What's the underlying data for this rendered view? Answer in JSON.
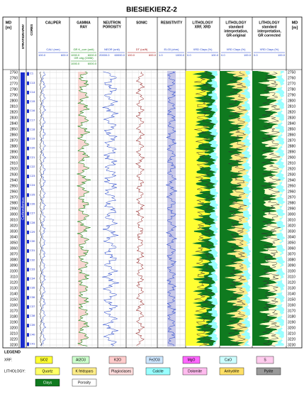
{
  "title": "BIESIEKIERZ-2",
  "md_header": [
    "MD",
    "[m]"
  ],
  "strat_header": "STRATIGRAPHY",
  "cores_header": "CORES",
  "stratigraphy": "Carboniferous",
  "cores": [
    "C1",
    "C13",
    "C14",
    "C15",
    "C16",
    "C17",
    "C18",
    "C19",
    "C20",
    "C21",
    "C22",
    "C23",
    "C24",
    "C25",
    "C26",
    "C27",
    "C28",
    "C29",
    "C30",
    "C31",
    "C32",
    "C33",
    "C34",
    "C35",
    "C36",
    "C37",
    "C38",
    "C39",
    "C40",
    "C41"
  ],
  "tracks": [
    {
      "title": [
        "CALIPER"
      ],
      "scales": [
        {
          "label": "CALI (mm)",
          "min": "100.0",
          "max": "600.0",
          "color": "#1a3cc8"
        }
      ]
    },
    {
      "title": [
        "GAMMA",
        "RAY"
      ],
      "scales": [
        {
          "label": "GR K_corr (unit)",
          "min": "1000.0",
          "max": "6000.0",
          "color": "#1a8a1a"
        },
        {
          "label": "GR orig (CMM)",
          "min": "1000.0",
          "max": "6000.0",
          "color": "#1a8a1a"
        }
      ]
    },
    {
      "title": [
        "NEUTRON",
        "POROSITY"
      ],
      "scales": [
        {
          "label": "NEOR (unit)",
          "min": "20000.0",
          "max": "60000.0",
          "color": "#1a3cc8"
        }
      ]
    },
    {
      "title": [
        "SONIC"
      ],
      "scales": [
        {
          "label": "DT (us/ft)",
          "min": "100.0",
          "max": "600.0",
          "color": "#a01010"
        }
      ]
    },
    {
      "title": [
        "RESISTIVITY"
      ],
      "scales": [
        {
          "label": "EL03 (ohm)",
          "min": "1.0",
          "max": "1000.0",
          "color": "#1a3cc8"
        }
      ]
    },
    {
      "title": [
        "LITHOLOGY",
        "XRF, XRD"
      ],
      "scales": [
        {
          "label": "XRD Clays (%)",
          "min": "0.0",
          "max": "100.0",
          "color": "#1a3cc8"
        }
      ]
    },
    {
      "title": [
        "LITHOLOGY",
        "standard",
        "interpretation,",
        "GR-original"
      ],
      "scales": [
        {
          "label": "XRD Clays (%)",
          "min": "0.0",
          "max": "100.0",
          "color": "#1a3cc8"
        }
      ]
    },
    {
      "title": [
        "LITHOLOGY",
        "standard",
        "interpretation,",
        "GR corrected"
      ],
      "scales": [
        {
          "label": "XRD Clays (%)",
          "min": "0.0",
          "max": "100.0",
          "color": "#1a3cc8"
        }
      ]
    }
  ],
  "depth": {
    "range": [
      2745,
      3235
    ],
    "ticks": [
      2750,
      2760,
      2770,
      2780,
      2790,
      2800,
      2810,
      2820,
      2830,
      2840,
      2850,
      2860,
      2870,
      2880,
      2890,
      2900,
      2910,
      2920,
      2930,
      2940,
      2950,
      2960,
      2970,
      2980,
      2990,
      3000,
      3010,
      3020,
      3030,
      3040,
      3050,
      3060,
      3070,
      3080,
      3090,
      3100,
      3110,
      3120,
      3130,
      3140,
      3150,
      3160,
      3170,
      3180,
      3190,
      3200,
      3210,
      3220,
      3230
    ]
  },
  "legend": {
    "title": "LEGEND",
    "xrf_label": "XRF:",
    "xrf": [
      {
        "name": "SiO2",
        "color": "#ffff33"
      },
      {
        "name": "Al2O3",
        "color": "#ccffcc"
      },
      {
        "name": "K2O",
        "color": "#ffcccc"
      },
      {
        "name": "Fe2O3",
        "color": "#cce6ff"
      },
      {
        "name": "MgO",
        "color": "#ff66ff"
      },
      {
        "name": "CaO",
        "color": "#ccffff"
      },
      {
        "name": "S",
        "color": "#ffccee"
      }
    ],
    "lith_label": "LITHOLOGY:",
    "lith": [
      {
        "name": "Quartz",
        "color": "#ffff66"
      },
      {
        "name": "K feldspars",
        "color": "#ffee88"
      },
      {
        "name": "Plagioclases",
        "color": "#ffdddd"
      },
      {
        "name": "Calcite",
        "color": "#99ffff"
      },
      {
        "name": "Dolomite",
        "color": "#ffbbee"
      },
      {
        "name": "Anhydrite",
        "color": "#ffe066"
      },
      {
        "name": "Pyrite",
        "color": "#999999"
      },
      {
        "name": "Clays",
        "color": "#0f7a1f"
      },
      {
        "name": "Porosity",
        "color": "#ffffff"
      }
    ]
  }
}
